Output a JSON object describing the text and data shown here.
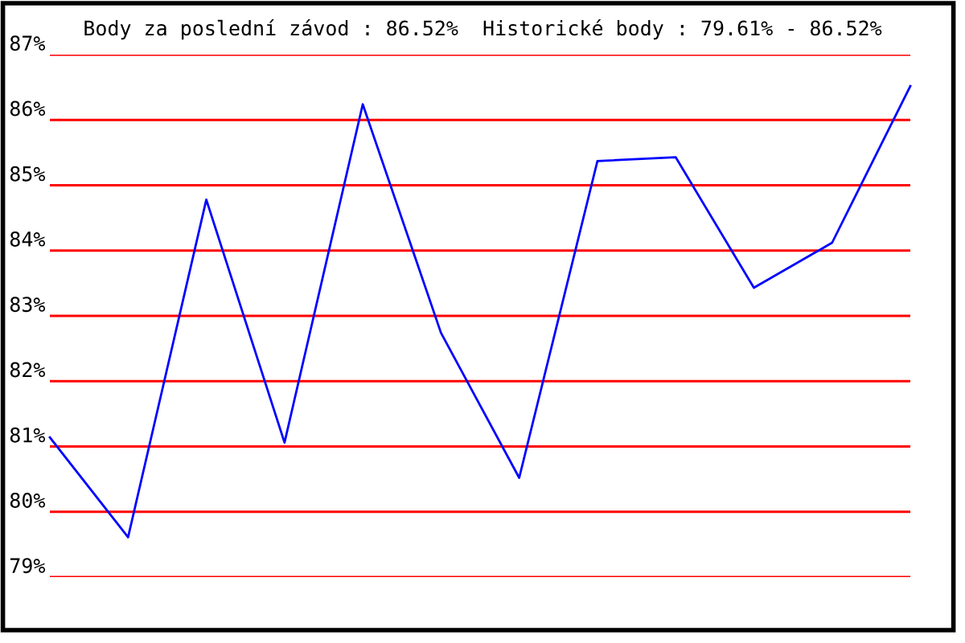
{
  "chart_data": {
    "type": "line",
    "title": "Body za poslední závod : 86.52%  Historické body : 79.61% - 86.52%",
    "categories": [
      null,
      null,
      null,
      null,
      null,
      null,
      null,
      null,
      null,
      null,
      null,
      null
    ],
    "series": [
      {
        "color": "#0000ff",
        "values": [
          81.14,
          79.61,
          84.78,
          81.06,
          86.24,
          82.74,
          80.52,
          85.37,
          85.43,
          83.43,
          84.12,
          86.52
        ]
      }
    ],
    "ylim": [
      79,
      87
    ],
    "yticks": [
      {
        "value": 79,
        "label": "79%"
      },
      {
        "value": 80,
        "label": "80%"
      },
      {
        "value": 81,
        "label": "81%"
      },
      {
        "value": 82,
        "label": "82%"
      },
      {
        "value": 83,
        "label": "83%"
      },
      {
        "value": 84,
        "label": "84%"
      },
      {
        "value": 85,
        "label": "85%"
      },
      {
        "value": 86,
        "label": "86%"
      },
      {
        "value": 87,
        "label": "87%"
      }
    ],
    "grid": "y",
    "tick_labels": "y",
    "marker": "none",
    "line_style": "solid"
  }
}
